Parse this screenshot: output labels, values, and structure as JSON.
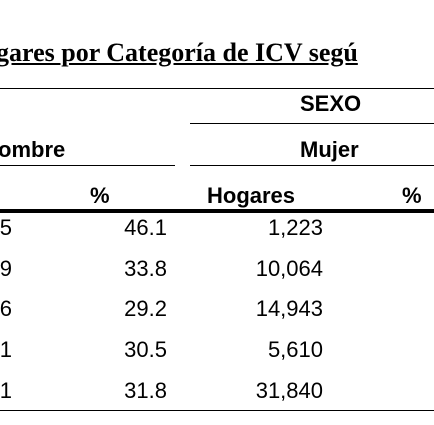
{
  "title": "gares por Categoría de ICV segú",
  "group_header": "SEXO",
  "subheaders": [
    "ombre",
    "Mujer"
  ],
  "columns": [
    "%",
    "Hogares",
    "%"
  ],
  "table": {
    "rows": [
      [
        "5",
        "46.1",
        "1,223"
      ],
      [
        "9",
        "33.8",
        "10,064"
      ],
      [
        "6",
        "29.2",
        "14,943"
      ],
      [
        "1",
        "30.5",
        "5,610"
      ],
      [
        "1",
        "31.8",
        "31,840"
      ]
    ]
  }
}
